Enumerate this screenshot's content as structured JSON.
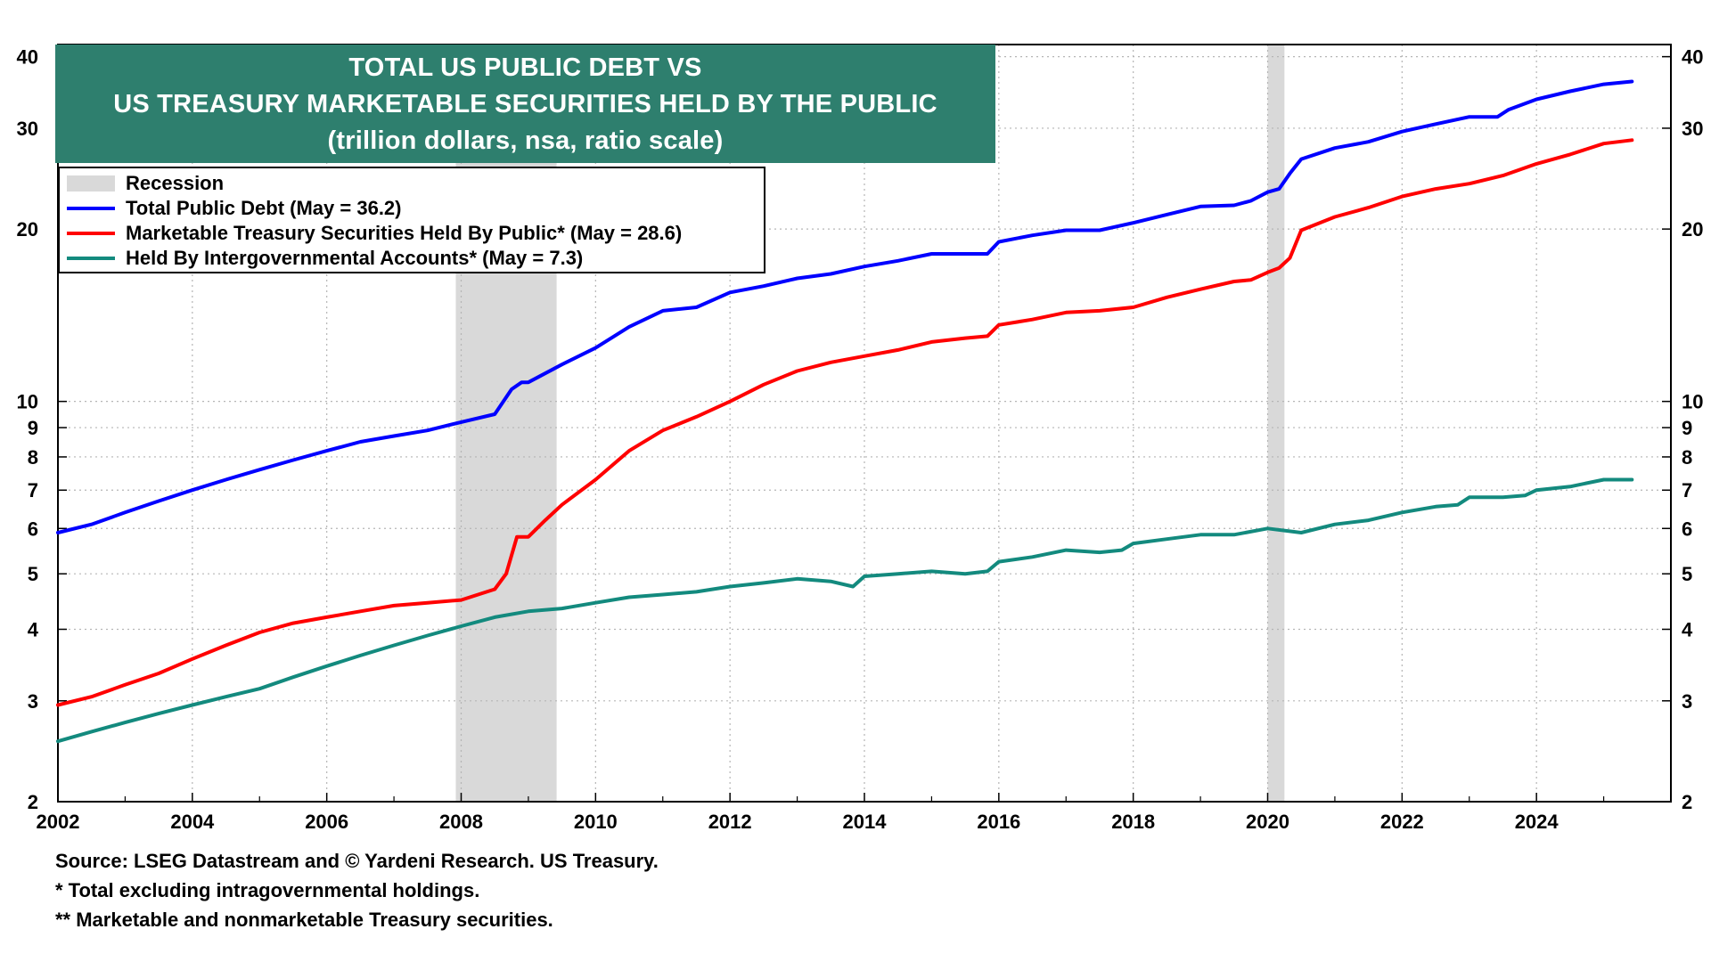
{
  "chart_data": {
    "type": "line",
    "title": "TOTAL US PUBLIC DEBT VS",
    "title_line2": "US TREASURY MARKETABLE SECURITIES HELD BY THE PUBLIC",
    "subtitle": "(trillion dollars, nsa, ratio scale)",
    "y_scale": "log",
    "ylim": [
      2,
      42
    ],
    "xlim": [
      2002.0,
      2026.0
    ],
    "y_ticks": [
      "2",
      "3",
      "4",
      "5",
      "6",
      "7",
      "8",
      "9",
      "10",
      "20",
      "30",
      "40"
    ],
    "x_ticks": [
      "2002",
      "2004",
      "2006",
      "2008",
      "2010",
      "2012",
      "2014",
      "2016",
      "2018",
      "2020",
      "2022",
      "2024"
    ],
    "grid": true,
    "legend_position": "top-left",
    "recessions": [
      {
        "start": 2007.92,
        "end": 2009.42
      },
      {
        "start": 2020.0,
        "end": 2020.25
      }
    ],
    "series": [
      {
        "name": "Total Public Debt (May = 36.2)",
        "color": "#0000ff",
        "x": [
          2002.0,
          2002.5,
          2003.0,
          2003.5,
          2004.0,
          2004.5,
          2005.0,
          2005.5,
          2006.0,
          2006.5,
          2007.0,
          2007.5,
          2008.0,
          2008.5,
          2008.75,
          2008.9,
          2009.0,
          2009.5,
          2010.0,
          2010.5,
          2011.0,
          2011.5,
          2012.0,
          2012.5,
          2013.0,
          2013.5,
          2014.0,
          2014.5,
          2015.0,
          2015.5,
          2015.83,
          2016.0,
          2016.5,
          2017.0,
          2017.5,
          2018.0,
          2018.5,
          2019.0,
          2019.5,
          2019.75,
          2020.0,
          2020.17,
          2020.33,
          2020.5,
          2021.0,
          2021.5,
          2022.0,
          2022.5,
          2023.0,
          2023.42,
          2023.58,
          2024.0,
          2024.5,
          2025.0,
          2025.42
        ],
        "values": [
          5.9,
          6.1,
          6.4,
          6.7,
          7.0,
          7.3,
          7.6,
          7.9,
          8.2,
          8.5,
          8.7,
          8.9,
          9.2,
          9.5,
          10.5,
          10.8,
          10.8,
          11.6,
          12.4,
          13.5,
          14.4,
          14.6,
          15.5,
          15.9,
          16.4,
          16.7,
          17.2,
          17.6,
          18.1,
          18.1,
          18.1,
          19.0,
          19.5,
          19.9,
          19.9,
          20.5,
          21.2,
          21.9,
          22.0,
          22.4,
          23.2,
          23.5,
          25.0,
          26.5,
          27.7,
          28.4,
          29.6,
          30.5,
          31.4,
          31.4,
          32.3,
          33.7,
          34.8,
          35.8,
          36.2
        ]
      },
      {
        "name": "Marketable Treasury Securities Held By Public* (May = 28.6)",
        "color": "#ff0000",
        "x": [
          2002.0,
          2002.5,
          2003.0,
          2003.5,
          2004.0,
          2004.5,
          2005.0,
          2005.5,
          2006.0,
          2006.5,
          2007.0,
          2007.5,
          2008.0,
          2008.5,
          2008.67,
          2008.83,
          2009.0,
          2009.25,
          2009.5,
          2010.0,
          2010.5,
          2011.0,
          2011.5,
          2012.0,
          2012.5,
          2013.0,
          2013.5,
          2014.0,
          2014.5,
          2015.0,
          2015.5,
          2015.83,
          2016.0,
          2016.5,
          2017.0,
          2017.5,
          2018.0,
          2018.5,
          2019.0,
          2019.5,
          2019.75,
          2020.0,
          2020.17,
          2020.33,
          2020.5,
          2021.0,
          2021.5,
          2022.0,
          2022.5,
          2023.0,
          2023.5,
          2024.0,
          2024.5,
          2025.0,
          2025.42
        ],
        "values": [
          2.95,
          3.05,
          3.2,
          3.35,
          3.55,
          3.75,
          3.95,
          4.1,
          4.2,
          4.3,
          4.4,
          4.45,
          4.5,
          4.7,
          5.0,
          5.8,
          5.8,
          6.2,
          6.6,
          7.3,
          8.2,
          8.9,
          9.4,
          10.0,
          10.7,
          11.3,
          11.7,
          12.0,
          12.3,
          12.7,
          12.9,
          13.0,
          13.6,
          13.9,
          14.3,
          14.4,
          14.6,
          15.2,
          15.7,
          16.2,
          16.3,
          16.8,
          17.1,
          17.8,
          19.9,
          21.0,
          21.8,
          22.8,
          23.5,
          24.0,
          24.8,
          26.0,
          27.0,
          28.2,
          28.6
        ]
      },
      {
        "name": "Held By Intergovernmental Accounts* (May = 7.3)",
        "color": "#138a7e",
        "x": [
          2002.0,
          2002.5,
          2003.0,
          2003.5,
          2004.0,
          2004.5,
          2005.0,
          2005.5,
          2006.0,
          2006.5,
          2007.0,
          2007.5,
          2008.0,
          2008.5,
          2009.0,
          2009.5,
          2010.0,
          2010.5,
          2011.0,
          2011.5,
          2012.0,
          2012.5,
          2013.0,
          2013.5,
          2013.83,
          2014.0,
          2014.5,
          2015.0,
          2015.5,
          2015.83,
          2016.0,
          2016.5,
          2017.0,
          2017.5,
          2017.83,
          2018.0,
          2018.5,
          2019.0,
          2019.5,
          2020.0,
          2020.5,
          2021.0,
          2021.5,
          2022.0,
          2022.5,
          2022.83,
          2023.0,
          2023.5,
          2023.83,
          2024.0,
          2024.5,
          2025.0,
          2025.42
        ],
        "values": [
          2.55,
          2.65,
          2.75,
          2.85,
          2.95,
          3.05,
          3.15,
          3.3,
          3.45,
          3.6,
          3.75,
          3.9,
          4.05,
          4.2,
          4.3,
          4.35,
          4.45,
          4.55,
          4.6,
          4.65,
          4.75,
          4.82,
          4.9,
          4.85,
          4.75,
          4.95,
          5.0,
          5.05,
          5.0,
          5.05,
          5.25,
          5.35,
          5.5,
          5.45,
          5.5,
          5.65,
          5.75,
          5.85,
          5.85,
          6.0,
          5.9,
          6.1,
          6.2,
          6.4,
          6.55,
          6.6,
          6.8,
          6.8,
          6.85,
          7.0,
          7.1,
          7.3,
          7.3
        ]
      }
    ]
  },
  "legend": {
    "recession_label": "Recession",
    "recession_color": "#d9d9d9"
  },
  "footnotes": [
    "Source: LSEG Datastream and © Yardeni Research. US Treasury.",
    "* Total excluding intragovernmental holdings.",
    "** Marketable and nonmarketable Treasury securities."
  ]
}
